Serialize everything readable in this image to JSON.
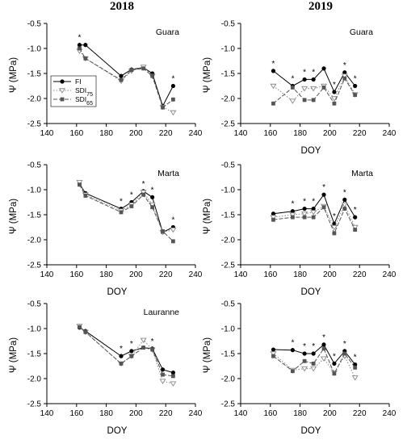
{
  "headers": [
    "2018",
    "2019"
  ],
  "legend": [
    {
      "label": "FI",
      "marker": "circle",
      "dash": ""
    },
    {
      "label": "SDI75",
      "label_main": "SDI",
      "label_sub": "75",
      "marker": "triangle",
      "dash": "1.5,2"
    },
    {
      "label": "SDI65",
      "label_main": "SDI",
      "label_sub": "65",
      "marker": "square",
      "dash": "5,2"
    }
  ],
  "colors": {
    "FI": "#000000",
    "SDI75": "#888888",
    "SDI65": "#555555"
  },
  "chart_data": [
    {
      "type": "line",
      "year": "2018",
      "label": "Guara",
      "xlabel": "",
      "ylabel": "Ψ (MPa)",
      "xlim": [
        140,
        240
      ],
      "ylim": [
        -2.5,
        -0.5
      ],
      "xticks": [
        140,
        160,
        180,
        200,
        220,
        240
      ],
      "yticks": [
        -0.5,
        -1.0,
        -1.5,
        -2.0,
        -2.5
      ],
      "x": [
        162,
        166,
        190,
        197,
        205,
        211,
        218,
        225
      ],
      "series": [
        {
          "name": "FI",
          "values": [
            -0.93,
            -0.93,
            -1.55,
            -1.42,
            -1.38,
            -1.5,
            -2.15,
            -1.75
          ]
        },
        {
          "name": "SDI75",
          "values": [
            -1.05,
            -1.2,
            -1.65,
            -1.45,
            -1.37,
            -1.55,
            -2.17,
            -2.28
          ]
        },
        {
          "name": "SDI65",
          "values": [
            -1.0,
            -1.2,
            -1.63,
            -1.43,
            -1.4,
            -1.55,
            -2.18,
            -2.02
          ]
        }
      ],
      "significance": [
        "*",
        null,
        null,
        null,
        null,
        null,
        null,
        "*"
      ]
    },
    {
      "type": "line",
      "year": "2019",
      "label": "Guara",
      "xlabel": "DOY",
      "ylabel": "Ψ (MPa)",
      "xlim": [
        140,
        240
      ],
      "ylim": [
        -2.5,
        -0.5
      ],
      "xticks": [
        140,
        160,
        180,
        200,
        220,
        240
      ],
      "yticks": [
        -0.5,
        -1.0,
        -1.5,
        -2.0,
        -2.5
      ],
      "x": [
        162,
        175,
        183,
        189,
        196,
        203,
        210,
        217
      ],
      "series": [
        {
          "name": "FI",
          "values": [
            -1.45,
            -1.75,
            -1.62,
            -1.62,
            -1.4,
            -1.87,
            -1.48,
            -1.75
          ]
        },
        {
          "name": "SDI75",
          "values": [
            -1.75,
            -2.05,
            -1.8,
            -1.8,
            -1.75,
            -2.0,
            -1.55,
            -1.92
          ]
        },
        {
          "name": "SDI65",
          "values": [
            -2.1,
            -1.78,
            -2.03,
            -2.03,
            -1.78,
            -2.1,
            -1.6,
            -1.93
          ]
        }
      ],
      "significance": [
        "*",
        "*",
        "*",
        "*",
        null,
        "*",
        "*",
        "*"
      ]
    },
    {
      "type": "line",
      "year": "2018",
      "label": "Marta",
      "xlabel": "DOY",
      "ylabel": "Ψ (MPa)",
      "xlim": [
        140,
        240
      ],
      "ylim": [
        -2.5,
        -0.5
      ],
      "xticks": [
        140,
        160,
        180,
        200,
        220,
        240
      ],
      "yticks": [
        -0.5,
        -1.0,
        -1.5,
        -2.0,
        -2.5
      ],
      "x": [
        162,
        166,
        190,
        197,
        205,
        211,
        218,
        225
      ],
      "series": [
        {
          "name": "FI",
          "values": [
            -0.88,
            -1.07,
            -1.38,
            -1.25,
            -1.03,
            -1.15,
            -1.85,
            -1.75
          ]
        },
        {
          "name": "SDI75",
          "values": [
            -0.85,
            -1.1,
            -1.42,
            -1.3,
            -1.05,
            -1.3,
            -1.85,
            -1.8
          ]
        },
        {
          "name": "SDI65",
          "values": [
            -0.9,
            -1.12,
            -1.45,
            -1.33,
            -1.1,
            -1.35,
            -1.83,
            -2.03
          ]
        }
      ],
      "significance": [
        null,
        null,
        "*",
        "*",
        "*",
        "*",
        null,
        "*"
      ]
    },
    {
      "type": "line",
      "year": "2019",
      "label": "Marta",
      "xlabel": "DOY",
      "ylabel": "Ψ (MPa)",
      "xlim": [
        140,
        240
      ],
      "ylim": [
        -2.5,
        -0.5
      ],
      "xticks": [
        140,
        160,
        180,
        200,
        220,
        240
      ],
      "yticks": [
        -0.5,
        -1.0,
        -1.5,
        -2.0,
        -2.5
      ],
      "x": [
        162,
        175,
        183,
        189,
        196,
        203,
        210,
        217
      ],
      "series": [
        {
          "name": "FI",
          "values": [
            -1.48,
            -1.43,
            -1.38,
            -1.38,
            -1.1,
            -1.68,
            -1.2,
            -1.55
          ]
        },
        {
          "name": "SDI75",
          "values": [
            -1.55,
            -1.5,
            -1.48,
            -1.45,
            -1.33,
            -1.75,
            -1.3,
            -1.75
          ]
        },
        {
          "name": "SDI65",
          "values": [
            -1.6,
            -1.55,
            -1.55,
            -1.55,
            -1.35,
            -1.87,
            -1.38,
            -1.8
          ]
        }
      ],
      "significance": [
        null,
        "*",
        "*",
        "*",
        "*",
        "*",
        "*",
        "*"
      ]
    },
    {
      "type": "line",
      "year": "2018",
      "label": "Lauranne",
      "xlabel": "DOY",
      "ylabel": "Ψ (MPa)",
      "xlim": [
        140,
        240
      ],
      "ylim": [
        -2.5,
        -0.5
      ],
      "xticks": [
        140,
        160,
        180,
        200,
        220,
        240
      ],
      "yticks": [
        -0.5,
        -1.0,
        -1.5,
        -2.0,
        -2.5
      ],
      "x": [
        162,
        166,
        190,
        197,
        205,
        211,
        218,
        225
      ],
      "series": [
        {
          "name": "FI",
          "values": [
            -0.98,
            -1.05,
            -1.55,
            -1.45,
            -1.38,
            -1.4,
            -1.82,
            -1.88
          ]
        },
        {
          "name": "SDI75",
          "values": [
            -0.95,
            -1.07,
            -1.7,
            -1.55,
            -1.23,
            -1.42,
            -2.05,
            -2.1
          ]
        },
        {
          "name": "SDI65",
          "values": [
            -0.97,
            -1.07,
            -1.7,
            -1.55,
            -1.38,
            -1.42,
            -1.92,
            -1.95
          ]
        }
      ],
      "significance": [
        null,
        null,
        "*",
        "*",
        null,
        "*",
        null,
        null
      ]
    },
    {
      "type": "line",
      "year": "2019",
      "label": "",
      "xlabel": "DOY",
      "ylabel": "Ψ (MPa)",
      "xlim": [
        140,
        240
      ],
      "ylim": [
        -2.5,
        -0.5
      ],
      "xticks": [
        140,
        160,
        180,
        200,
        220,
        240
      ],
      "yticks": [
        -0.5,
        -1.0,
        -1.5,
        -2.0,
        -2.5
      ],
      "x": [
        162,
        175,
        183,
        189,
        196,
        203,
        210,
        217
      ],
      "series": [
        {
          "name": "FI",
          "values": [
            -1.42,
            -1.43,
            -1.5,
            -1.5,
            -1.32,
            -1.7,
            -1.45,
            -1.72
          ]
        },
        {
          "name": "SDI75",
          "values": [
            -1.5,
            -1.83,
            -1.8,
            -1.8,
            -1.6,
            -1.88,
            -1.55,
            -1.98
          ]
        },
        {
          "name": "SDI65",
          "values": [
            -1.55,
            -1.85,
            -1.65,
            -1.7,
            -1.4,
            -1.9,
            -1.5,
            -1.78
          ]
        }
      ],
      "significance": [
        null,
        "*",
        "*",
        "*",
        "*",
        "*",
        "*",
        "*"
      ]
    }
  ]
}
